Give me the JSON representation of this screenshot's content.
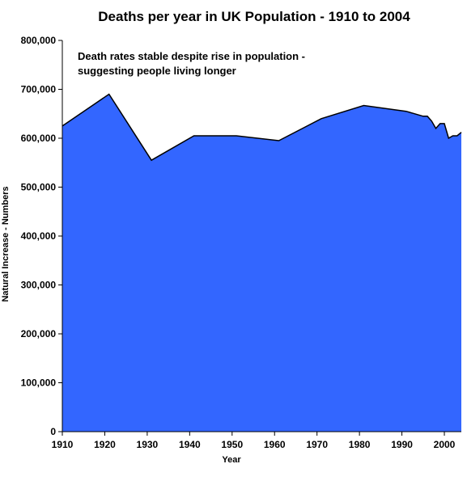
{
  "chart_data": {
    "type": "area",
    "title": "Deaths per year in UK Population - 1910 to 2004",
    "xlabel": "Year",
    "ylabel": "Natural Increase - Numbers",
    "xlim": [
      1910,
      2004
    ],
    "ylim": [
      0,
      800000
    ],
    "x_ticks": [
      "1910",
      "1920",
      "1930",
      "1940",
      "1950",
      "1960",
      "1970",
      "1980",
      "1990",
      "2000"
    ],
    "y_ticks": [
      "0",
      "100,000",
      "200,000",
      "300,000",
      "400,000",
      "500,000",
      "600,000",
      "700,000",
      "800,000"
    ],
    "x_tick_values": [
      1910,
      1920,
      1930,
      1940,
      1950,
      1960,
      1970,
      1980,
      1990,
      2000
    ],
    "y_tick_values": [
      0,
      100000,
      200000,
      300000,
      400000,
      500000,
      600000,
      700000,
      800000
    ],
    "annotation": [
      "Death rates stable despite rise in population -",
      "suggesting people living longer"
    ],
    "color": "#3366ff",
    "grid": false,
    "legend": "none",
    "series": [
      {
        "x": [
          1910,
          1921,
          1931,
          1941,
          1951,
          1961,
          1971,
          1981,
          1991,
          1995,
          1996,
          1997,
          1998,
          1999,
          2000,
          2001,
          2002,
          2003,
          2004
        ],
        "y": [
          625000,
          690000,
          555000,
          605000,
          605000,
          595000,
          640000,
          667000,
          655000,
          645000,
          645000,
          635000,
          620000,
          630000,
          630000,
          600000,
          605000,
          605000,
          612000
        ]
      }
    ]
  }
}
